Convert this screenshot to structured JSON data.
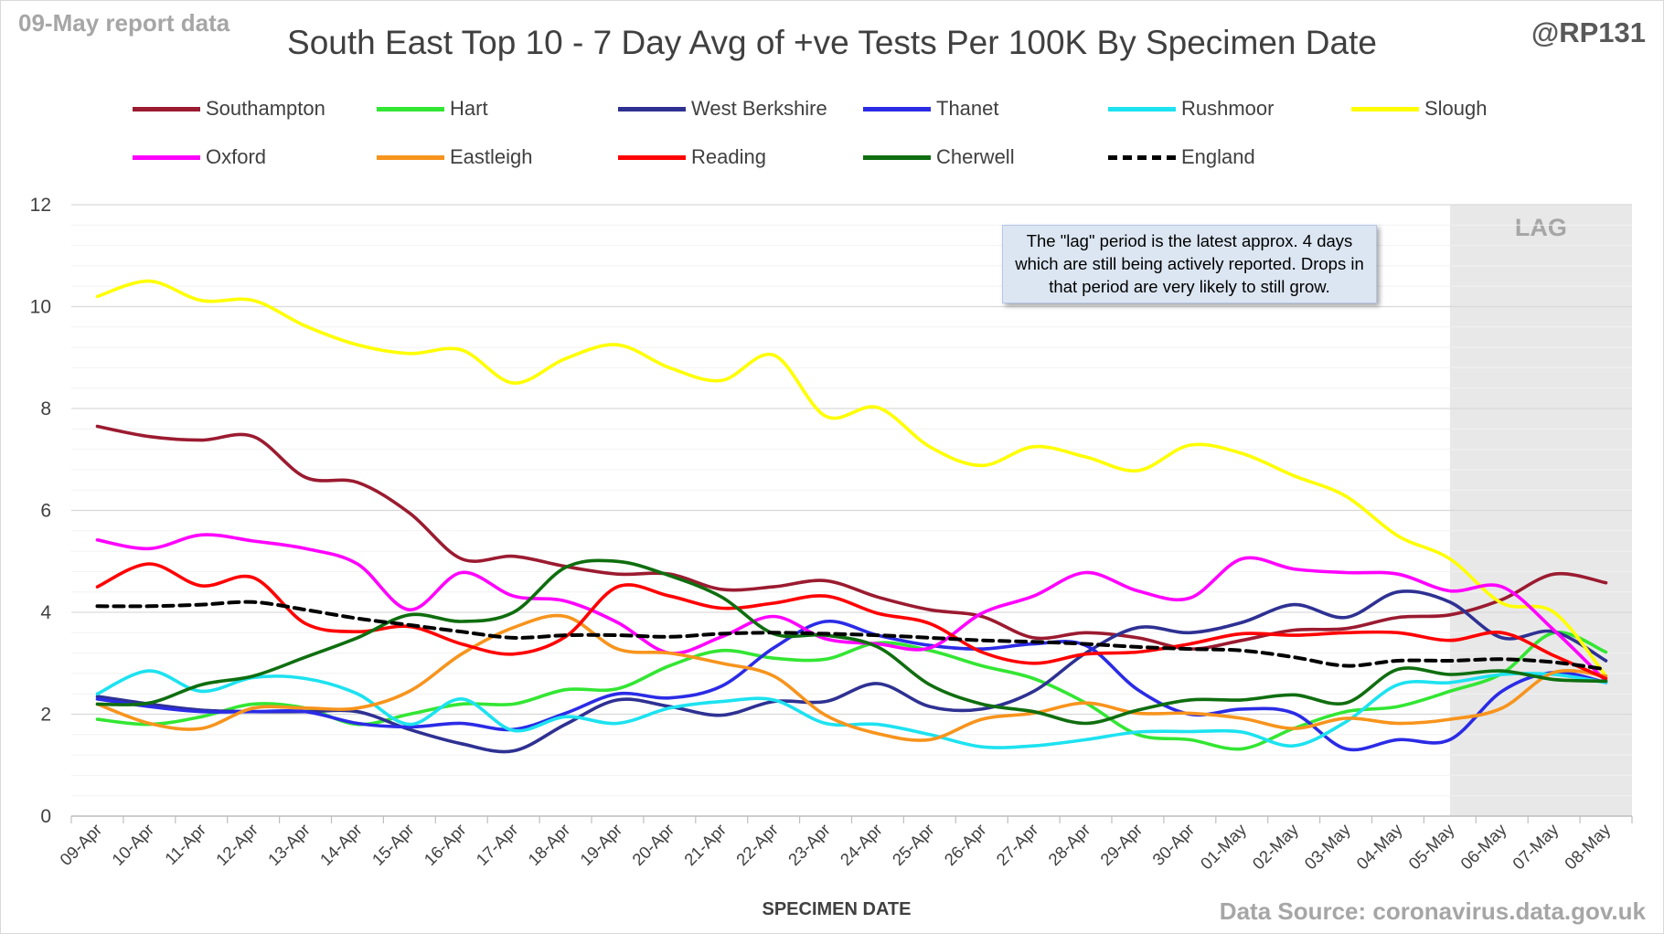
{
  "header": {
    "report_label": "09-May report data",
    "handle": "@RP131",
    "title": "South East Top 10 - 7 Day Avg of +ve Tests Per 100K By Specimen Date",
    "source": "Data Source: coronavirus.data.gov.uk"
  },
  "annotation": {
    "text": "The \"lag\" period is the latest approx. 4 days which are still being actively reported.  Drops in that period are very likely to still grow.",
    "lag_label": "LAG"
  },
  "chart_data": {
    "type": "line",
    "title": "South East Top 10 - 7 Day Avg of +ve Tests Per 100K By Specimen Date",
    "xlabel": "SPECIMEN DATE",
    "ylabel": "",
    "ylim": [
      0,
      12
    ],
    "yticks": [
      0,
      2,
      4,
      6,
      8,
      10,
      12
    ],
    "grid": true,
    "legend_position": "top",
    "lag_region": [
      "05-May",
      "08-May"
    ],
    "x": [
      "09-Apr",
      "10-Apr",
      "11-Apr",
      "12-Apr",
      "13-Apr",
      "14-Apr",
      "15-Apr",
      "16-Apr",
      "17-Apr",
      "18-Apr",
      "19-Apr",
      "20-Apr",
      "21-Apr",
      "22-Apr",
      "23-Apr",
      "24-Apr",
      "25-Apr",
      "26-Apr",
      "27-Apr",
      "28-Apr",
      "29-Apr",
      "30-Apr",
      "01-May",
      "02-May",
      "03-May",
      "04-May",
      "05-May",
      "06-May",
      "07-May",
      "08-May"
    ],
    "series": [
      {
        "name": "Southampton",
        "color": "#9b1b30",
        "dash": false,
        "values": [
          7.65,
          7.45,
          7.38,
          7.45,
          6.65,
          6.55,
          5.95,
          5.05,
          5.1,
          4.9,
          4.75,
          4.75,
          4.45,
          4.5,
          4.62,
          4.3,
          4.05,
          3.92,
          3.5,
          3.6,
          3.5,
          3.28,
          3.45,
          3.65,
          3.68,
          3.9,
          3.95,
          4.25,
          4.75,
          4.58
        ]
      },
      {
        "name": "Hart",
        "color": "#33e633",
        "dash": false,
        "values": [
          1.9,
          1.8,
          1.95,
          2.2,
          2.12,
          1.8,
          2.0,
          2.2,
          2.2,
          2.48,
          2.5,
          2.95,
          3.25,
          3.1,
          3.08,
          3.4,
          3.25,
          2.95,
          2.7,
          2.22,
          1.6,
          1.5,
          1.32,
          1.72,
          2.05,
          2.15,
          2.45,
          2.8,
          3.6,
          3.22
        ]
      },
      {
        "name": "West Berkshire",
        "color": "#2e3192",
        "dash": false,
        "values": [
          2.35,
          2.2,
          2.08,
          2.05,
          2.05,
          2.05,
          1.7,
          1.42,
          1.28,
          1.8,
          2.28,
          2.15,
          1.98,
          2.25,
          2.25,
          2.6,
          2.15,
          2.1,
          2.45,
          3.2,
          3.7,
          3.6,
          3.8,
          4.15,
          3.9,
          4.4,
          4.2,
          3.5,
          3.62,
          3.05
        ]
      },
      {
        "name": "Thanet",
        "color": "#2b2be6",
        "dash": false,
        "values": [
          2.3,
          2.15,
          2.05,
          2.05,
          2.05,
          1.82,
          1.75,
          1.82,
          1.7,
          2.02,
          2.4,
          2.32,
          2.55,
          3.3,
          3.82,
          3.55,
          3.35,
          3.28,
          3.38,
          3.35,
          2.48,
          2.0,
          2.1,
          2.02,
          1.32,
          1.5,
          1.5,
          2.45,
          2.82,
          2.62
        ]
      },
      {
        "name": "Rushmoor",
        "color": "#1de2f0",
        "dash": false,
        "values": [
          2.4,
          2.85,
          2.45,
          2.72,
          2.7,
          2.4,
          1.8,
          2.3,
          1.68,
          1.95,
          1.82,
          2.12,
          2.25,
          2.28,
          1.82,
          1.8,
          1.6,
          1.36,
          1.38,
          1.5,
          1.65,
          1.66,
          1.65,
          1.38,
          1.85,
          2.58,
          2.62,
          2.78,
          2.78,
          2.62
        ]
      },
      {
        "name": "Slough",
        "color": "#ffff00",
        "dash": false,
        "values": [
          10.2,
          10.5,
          10.12,
          10.12,
          9.62,
          9.25,
          9.08,
          9.15,
          8.5,
          8.98,
          9.25,
          8.8,
          8.55,
          9.05,
          7.85,
          8.02,
          7.25,
          6.88,
          7.25,
          7.05,
          6.78,
          7.28,
          7.12,
          6.68,
          6.28,
          5.5,
          5.05,
          4.18,
          4.0,
          2.75
        ]
      },
      {
        "name": "Oxford",
        "color": "#ff00ff",
        "dash": false,
        "values": [
          5.42,
          5.25,
          5.52,
          5.4,
          5.25,
          4.95,
          4.05,
          4.78,
          4.32,
          4.22,
          3.8,
          3.2,
          3.52,
          3.92,
          3.48,
          3.38,
          3.3,
          3.98,
          4.32,
          4.78,
          4.42,
          4.28,
          5.05,
          4.85,
          4.78,
          4.75,
          4.42,
          4.5,
          3.65,
          2.65
        ]
      },
      {
        "name": "Eastleigh",
        "color": "#f7941d",
        "dash": false,
        "values": [
          2.2,
          1.82,
          1.72,
          2.12,
          2.12,
          2.12,
          2.45,
          3.18,
          3.7,
          3.92,
          3.28,
          3.2,
          3.0,
          2.75,
          1.98,
          1.62,
          1.5,
          1.9,
          2.02,
          2.22,
          2.02,
          2.02,
          1.92,
          1.72,
          1.92,
          1.82,
          1.9,
          2.12,
          2.82,
          2.75
        ]
      },
      {
        "name": "Reading",
        "color": "#ff0000",
        "dash": false,
        "values": [
          4.5,
          4.95,
          4.52,
          4.68,
          3.78,
          3.62,
          3.72,
          3.38,
          3.18,
          3.52,
          4.5,
          4.32,
          4.08,
          4.18,
          4.32,
          3.98,
          3.78,
          3.22,
          3.0,
          3.18,
          3.22,
          3.38,
          3.58,
          3.55,
          3.6,
          3.6,
          3.45,
          3.6,
          3.15,
          2.7
        ]
      },
      {
        "name": "Cherwell",
        "color": "#0f6e0f",
        "dash": false,
        "values": [
          2.2,
          2.22,
          2.58,
          2.75,
          3.12,
          3.5,
          3.95,
          3.82,
          4.0,
          4.88,
          5.0,
          4.72,
          4.3,
          3.58,
          3.55,
          3.32,
          2.58,
          2.2,
          2.05,
          1.82,
          2.08,
          2.28,
          2.28,
          2.38,
          2.22,
          2.88,
          2.78,
          2.85,
          2.68,
          2.65
        ]
      },
      {
        "name": "England",
        "color": "#000000",
        "dash": true,
        "values": [
          4.12,
          4.12,
          4.15,
          4.2,
          4.05,
          3.88,
          3.75,
          3.62,
          3.5,
          3.55,
          3.55,
          3.52,
          3.58,
          3.6,
          3.58,
          3.55,
          3.5,
          3.45,
          3.42,
          3.38,
          3.32,
          3.28,
          3.25,
          3.12,
          2.95,
          3.05,
          3.05,
          3.08,
          3.02,
          2.88
        ]
      }
    ]
  }
}
